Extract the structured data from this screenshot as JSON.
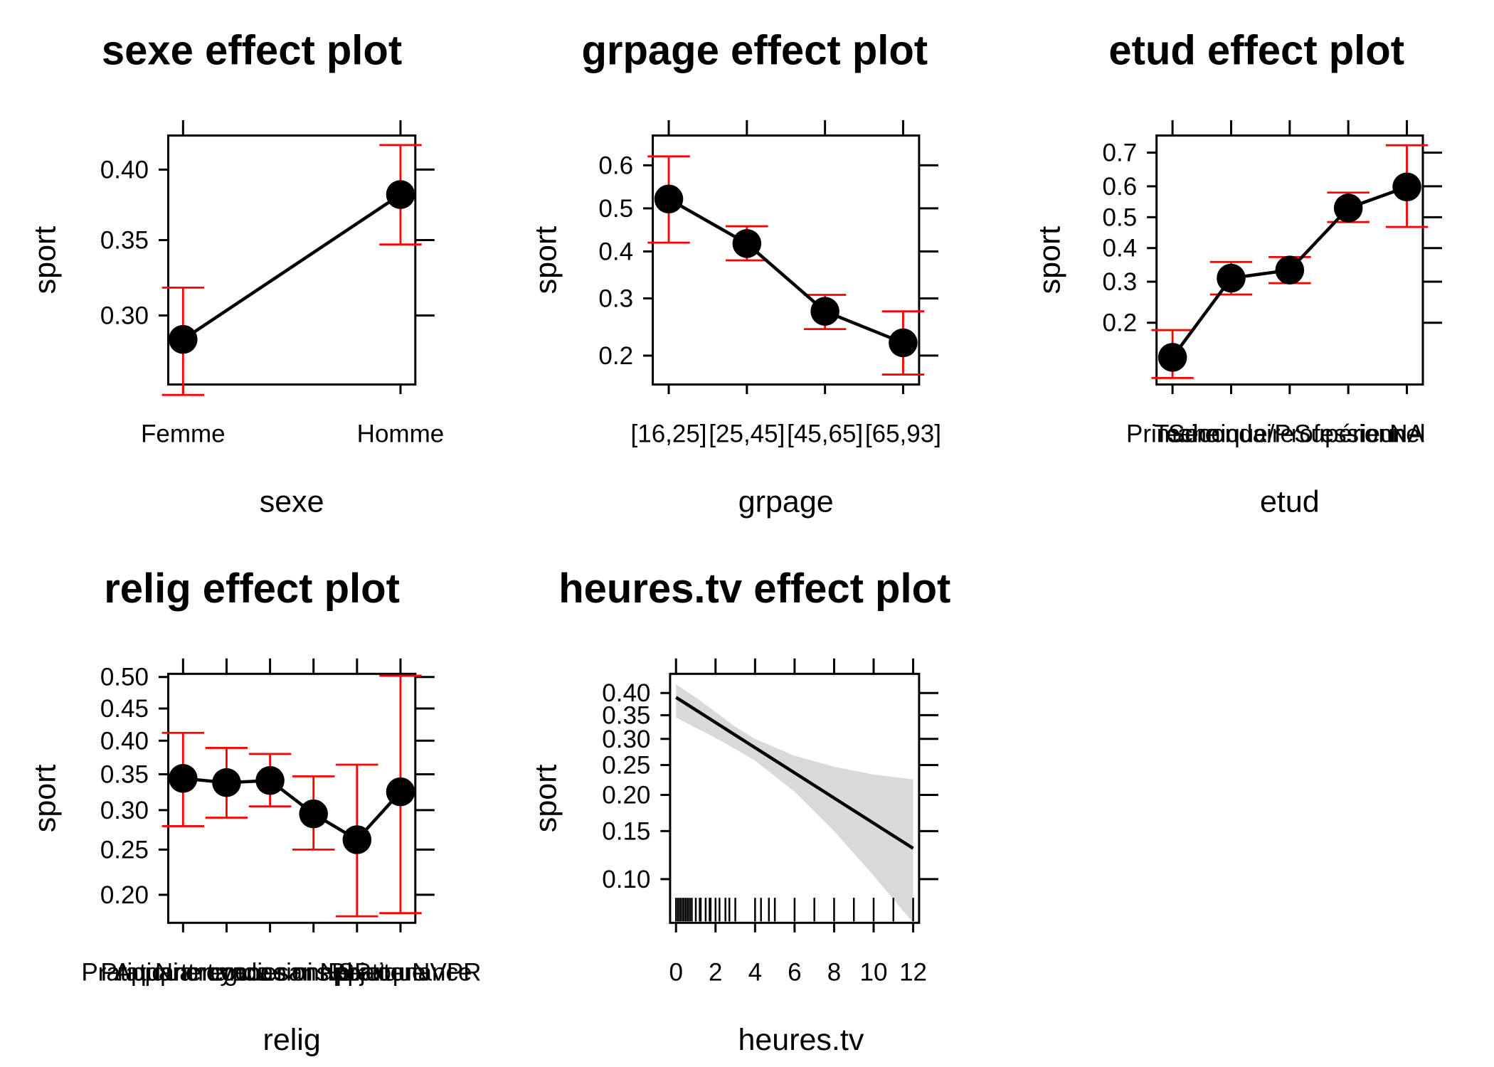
{
  "figure": {
    "background": "#ffffff",
    "colors": {
      "line": "#000000",
      "point": "#000000",
      "error_bar": "#ff0000",
      "band": "#d9d9d9"
    }
  },
  "chart_data": [
    {
      "id": "sexe",
      "type": "line",
      "title": "sexe effect plot",
      "xlabel": "sexe",
      "ylabel": "sport",
      "y_scale": "logit",
      "ylim": [
        0.258,
        0.425
      ],
      "yticks": [
        0.3,
        0.35,
        0.4
      ],
      "ytick_labels": [
        "0.30",
        "0.35",
        "0.40"
      ],
      "categories": [
        "Femme",
        "Homme"
      ],
      "values": [
        0.285,
        0.382
      ],
      "lower": [
        0.252,
        0.347
      ],
      "upper": [
        0.318,
        0.418
      ],
      "grid": false
    },
    {
      "id": "grpage",
      "type": "line",
      "title": "grpage effect plot",
      "xlabel": "grpage",
      "ylabel": "sport",
      "y_scale": "logit",
      "ylim": [
        0.16,
        0.665
      ],
      "yticks": [
        0.2,
        0.3,
        0.4,
        0.5,
        0.6
      ],
      "ytick_labels": [
        "0.2",
        "0.3",
        "0.4",
        "0.5",
        "0.6"
      ],
      "categories": [
        "[16,25]",
        "[25,45]",
        "[45,65]",
        "[65,93]"
      ],
      "values": [
        0.522,
        0.418,
        0.275,
        0.22
      ],
      "lower": [
        0.42,
        0.38,
        0.243,
        0.173
      ],
      "upper": [
        0.62,
        0.458,
        0.307,
        0.275
      ],
      "grid": false
    },
    {
      "id": "etud",
      "type": "line",
      "title": "etud effect plot",
      "xlabel": "etud",
      "ylabel": "sport",
      "y_scale": "logit",
      "ylim": [
        0.1,
        0.745
      ],
      "yticks": [
        0.2,
        0.3,
        0.4,
        0.5,
        0.6,
        0.7
      ],
      "ytick_labels": [
        "0.2",
        "0.3",
        "0.4",
        "0.5",
        "0.6",
        "0.7"
      ],
      "categories": [
        "Primaire",
        "Secondaire",
        "Technique/Professionnel",
        "Supérieur",
        "NA"
      ],
      "values": [
        0.137,
        0.31,
        0.333,
        0.53,
        0.598
      ],
      "lower": [
        0.108,
        0.266,
        0.296,
        0.484,
        0.468
      ],
      "upper": [
        0.185,
        0.357,
        0.372,
        0.58,
        0.72
      ],
      "grid": false
    },
    {
      "id": "relig",
      "type": "line",
      "title": "relig effect plot",
      "xlabel": "relig",
      "ylabel": "sport",
      "y_scale": "logit",
      "ylim": [
        0.173,
        0.505
      ],
      "yticks": [
        0.2,
        0.25,
        0.3,
        0.35,
        0.4,
        0.45,
        0.5
      ],
      "ytick_labels": [
        "0.20",
        "0.25",
        "0.30",
        "0.35",
        "0.40",
        "0.45",
        "0.50"
      ],
      "categories": [
        "Pratiquant regulier",
        "Pratiquant occasionnel",
        "Appartenance sans pratique",
        "Ni croyance ni appartenance",
        "Rejet",
        "NSP ou NVPR"
      ],
      "values": [
        0.344,
        0.338,
        0.341,
        0.295,
        0.262,
        0.325
      ],
      "lower": [
        0.279,
        0.29,
        0.305,
        0.25,
        0.179,
        0.182
      ],
      "upper": [
        0.412,
        0.389,
        0.38,
        0.347,
        0.364,
        0.502
      ],
      "grid": false
    },
    {
      "id": "heures.tv",
      "type": "line",
      "title": "heures.tv effect plot",
      "xlabel": "heures.tv",
      "ylabel": "sport",
      "y_scale": "logit",
      "xlim": [
        -0.3,
        12.3
      ],
      "ylim": [
        0.068,
        0.445
      ],
      "xticks": [
        0,
        2,
        4,
        6,
        8,
        10,
        12
      ],
      "xtick_labels": [
        "0",
        "2",
        "4",
        "6",
        "8",
        "10",
        "12"
      ],
      "yticks": [
        0.1,
        0.15,
        0.2,
        0.25,
        0.3,
        0.35,
        0.4
      ],
      "ytick_labels": [
        "0.10",
        "0.15",
        "0.20",
        "0.25",
        "0.30",
        "0.35",
        "0.40"
      ],
      "x": [
        0,
        12
      ],
      "values": [
        0.39,
        0.13
      ],
      "lower": [
        0.345,
        0.068
      ],
      "upper": [
        0.42,
        0.225
      ],
      "band_x": [
        0,
        1,
        2,
        3,
        4,
        6,
        8,
        10,
        12
      ],
      "band_lower": [
        0.345,
        0.323,
        0.302,
        0.28,
        0.258,
        0.205,
        0.15,
        0.103,
        0.068
      ],
      "band_upper": [
        0.42,
        0.39,
        0.357,
        0.325,
        0.3,
        0.267,
        0.247,
        0.233,
        0.225
      ],
      "rug": [
        0,
        0.1,
        0.2,
        0.3,
        0.4,
        0.5,
        0.6,
        0.7,
        0.8,
        1.0,
        1.2,
        1.25,
        1.5,
        1.7,
        1.75,
        2.0,
        2.2,
        2.5,
        2.7,
        3.0,
        4.0,
        4.3,
        4.7,
        5.0,
        6.0,
        7.0,
        8.0,
        9.0,
        10.0,
        11.0,
        12.0
      ],
      "grid": false
    }
  ]
}
